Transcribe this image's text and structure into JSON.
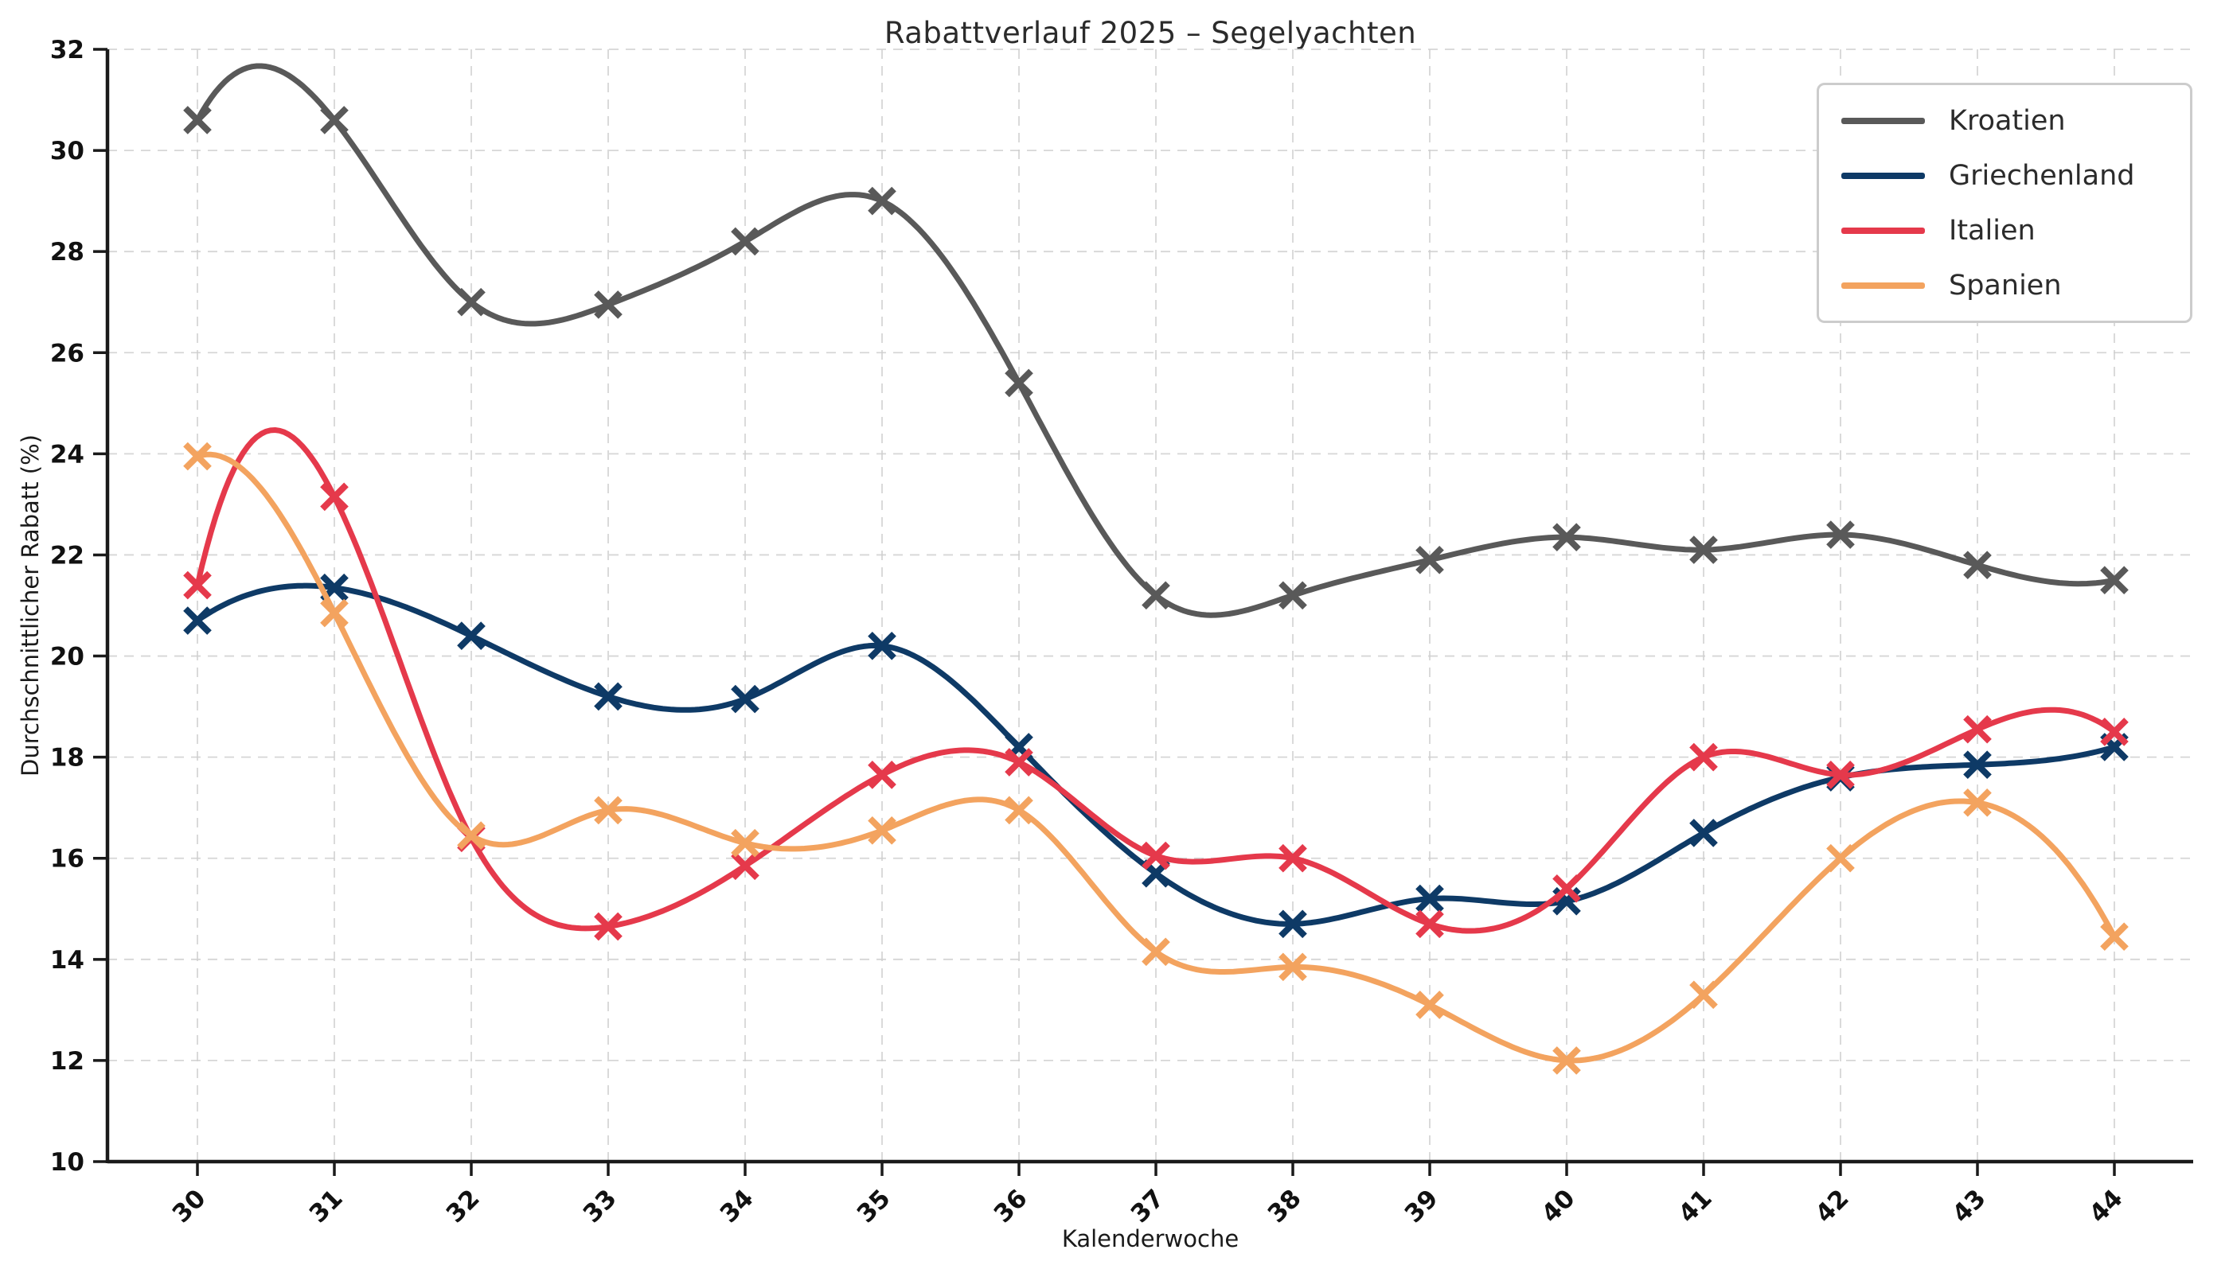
{
  "title": "Rabattverlauf 2025 – Segelyachten",
  "legend": {
    "position": "top-right",
    "entries": [
      "Kroatien",
      "Griechenland",
      "Italien",
      "Spanien"
    ]
  },
  "style": {
    "background": "#ffffff",
    "grid_color": "#d0d0d0",
    "spine_color": "#1a1a1a",
    "tick_label_color": "#111111",
    "title_color": "#2b2b2b"
  },
  "chart_data": {
    "type": "line",
    "title": "Rabattverlauf 2025 – Segelyachten",
    "xlabel": "Kalenderwoche",
    "ylabel": "Durchschnittlicher Rabatt (%)",
    "x": [
      30,
      31,
      32,
      33,
      34,
      35,
      36,
      37,
      38,
      39,
      40,
      41,
      42,
      43,
      44
    ],
    "ylim": [
      10,
      32
    ],
    "ytick_step": 2,
    "grid": true,
    "grid_style": "dashed",
    "legend_position": "top-right",
    "marker": "x",
    "line_style": "smooth-spline",
    "series": [
      {
        "name": "Kroatien",
        "color": "#595959",
        "values": [
          30.6,
          30.6,
          27.0,
          26.95,
          28.2,
          29.0,
          25.4,
          21.2,
          21.2,
          21.9,
          22.35,
          22.1,
          22.4,
          21.8,
          21.5
        ]
      },
      {
        "name": "Griechenland",
        "color": "#0e3a66",
        "values": [
          20.7,
          21.35,
          20.4,
          19.2,
          19.15,
          20.2,
          18.2,
          15.7,
          14.7,
          15.2,
          15.15,
          16.5,
          17.6,
          17.85,
          18.2
        ]
      },
      {
        "name": "Italien",
        "color": "#e5394b",
        "values": [
          21.4,
          23.15,
          16.4,
          14.65,
          15.85,
          17.65,
          17.9,
          16.05,
          16.0,
          14.7,
          15.4,
          18.0,
          17.65,
          18.55,
          18.5
        ]
      },
      {
        "name": "Spanien",
        "color": "#f3a35f",
        "values": [
          23.95,
          20.85,
          16.45,
          16.95,
          16.3,
          16.55,
          16.95,
          14.15,
          13.85,
          13.1,
          12.0,
          13.3,
          16.0,
          17.1,
          14.45
        ]
      }
    ]
  }
}
